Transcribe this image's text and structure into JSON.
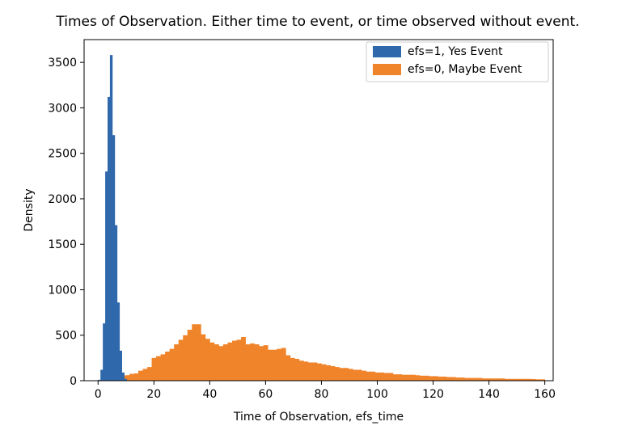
{
  "chart_data": {
    "type": "bar",
    "title": "Times of Observation. Either time to event, or time observed without event.",
    "xlabel": "Time of Observation, efs_time",
    "ylabel": "Density",
    "xlim": [
      -5,
      163
    ],
    "ylim": [
      0,
      3750
    ],
    "x_ticks": [
      0,
      20,
      40,
      60,
      80,
      100,
      120,
      140,
      160
    ],
    "y_ticks": [
      0,
      500,
      1000,
      1500,
      2000,
      2500,
      3000,
      3500
    ],
    "grid": false,
    "legend_position": "top-right",
    "series": [
      {
        "name": "efs=0, Maybe Event",
        "color": "#f0842a",
        "bin_start": 0,
        "bin_width": 1.6,
        "values": [
          0,
          10,
          20,
          35,
          45,
          55,
          60,
          75,
          80,
          110,
          130,
          150,
          250,
          270,
          290,
          320,
          350,
          400,
          450,
          500,
          560,
          620,
          620,
          510,
          460,
          420,
          400,
          380,
          400,
          420,
          440,
          450,
          480,
          400,
          410,
          400,
          380,
          390,
          340,
          340,
          350,
          360,
          280,
          250,
          240,
          220,
          210,
          200,
          200,
          190,
          180,
          170,
          160,
          150,
          140,
          140,
          130,
          120,
          120,
          110,
          100,
          100,
          90,
          90,
          85,
          85,
          70,
          70,
          65,
          65,
          65,
          60,
          55,
          55,
          50,
          50,
          45,
          45,
          40,
          40,
          35,
          35,
          30,
          30,
          30,
          30,
          25,
          25,
          25,
          25,
          25,
          20,
          20,
          20,
          20,
          20,
          20,
          18,
          15,
          15
        ]
      },
      {
        "name": "efs=1, Yes Event",
        "color": "#3068ac",
        "bin_start": 0,
        "bin_width": 0.85,
        "values": [
          10,
          120,
          630,
          2300,
          3120,
          3580,
          2700,
          1710,
          860,
          330,
          90,
          20,
          5,
          0
        ]
      }
    ]
  }
}
